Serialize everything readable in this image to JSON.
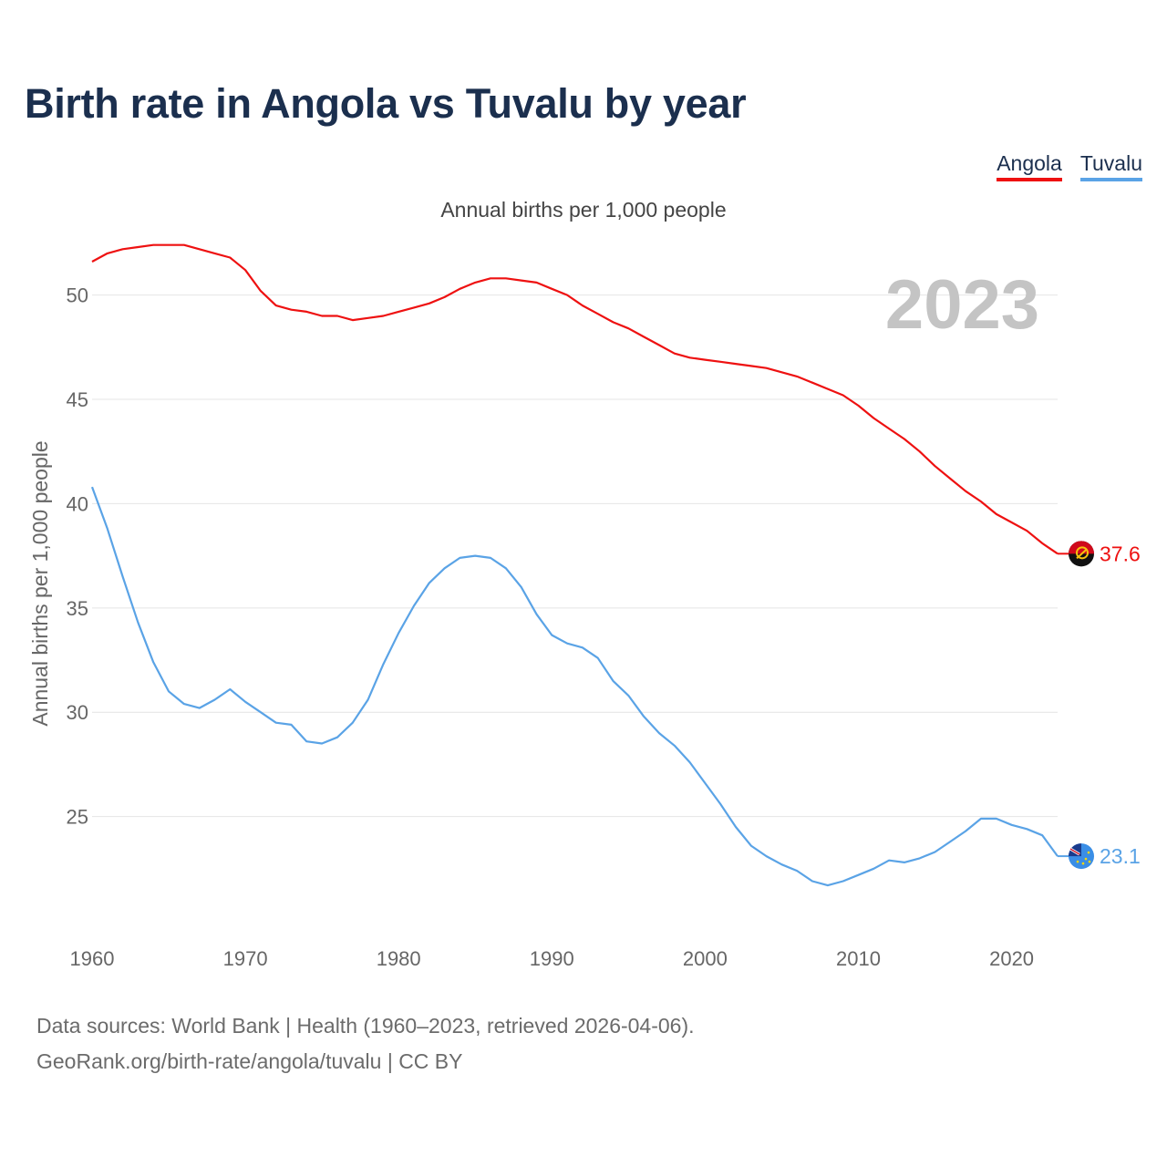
{
  "title": "Birth rate in Angola vs Tuvalu by year",
  "legend": [
    {
      "label": "Angola",
      "color": "#ee1111"
    },
    {
      "label": "Tuvalu",
      "color": "#5aa3e6"
    }
  ],
  "subtitle": "Annual births per 1,000 people",
  "year_watermark": "2023",
  "source_line1": "Data sources: World Bank | Health (1960–2023, retrieved 2026-04-06).",
  "source_line2": "GeoRank.org/birth-rate/angola/tuvalu | CC BY",
  "chart_data": {
    "type": "line",
    "title": "Birth rate in Angola vs Tuvalu by year",
    "xlabel": "",
    "ylabel": "Annual births per 1,000 people",
    "xlim": [
      1960,
      2023
    ],
    "ylim": [
      20,
      53
    ],
    "x_ticks": [
      1960,
      1970,
      1980,
      1990,
      2000,
      2010,
      2020
    ],
    "y_ticks": [
      25,
      30,
      35,
      40,
      45,
      50
    ],
    "grid": true,
    "legend_position": "top-right",
    "x": [
      1960,
      1961,
      1962,
      1963,
      1964,
      1965,
      1966,
      1967,
      1968,
      1969,
      1970,
      1971,
      1972,
      1973,
      1974,
      1975,
      1976,
      1977,
      1978,
      1979,
      1980,
      1981,
      1982,
      1983,
      1984,
      1985,
      1986,
      1987,
      1988,
      1989,
      1990,
      1991,
      1992,
      1993,
      1994,
      1995,
      1996,
      1997,
      1998,
      1999,
      2000,
      2001,
      2002,
      2003,
      2004,
      2005,
      2006,
      2007,
      2008,
      2009,
      2010,
      2011,
      2012,
      2013,
      2014,
      2015,
      2016,
      2017,
      2018,
      2019,
      2020,
      2021,
      2022,
      2023
    ],
    "series": [
      {
        "name": "Angola",
        "color": "#ee1111",
        "end_label": "37.6",
        "values": [
          51.6,
          52.0,
          52.2,
          52.3,
          52.4,
          52.4,
          52.4,
          52.2,
          52.0,
          51.8,
          51.2,
          50.2,
          49.5,
          49.3,
          49.2,
          49.0,
          49.0,
          48.8,
          48.9,
          49.0,
          49.2,
          49.4,
          49.6,
          49.9,
          50.3,
          50.6,
          50.8,
          50.8,
          50.7,
          50.6,
          50.3,
          50.0,
          49.5,
          49.1,
          48.7,
          48.4,
          48.0,
          47.6,
          47.2,
          47.0,
          46.9,
          46.8,
          46.7,
          46.6,
          46.5,
          46.3,
          46.1,
          45.8,
          45.5,
          45.2,
          44.7,
          44.1,
          43.6,
          43.1,
          42.5,
          41.8,
          41.2,
          40.6,
          40.1,
          39.5,
          39.1,
          38.7,
          38.1,
          37.6
        ]
      },
      {
        "name": "Tuvalu",
        "color": "#5aa3e6",
        "end_label": "23.1",
        "values": [
          40.8,
          38.8,
          36.5,
          34.3,
          32.4,
          31.0,
          30.4,
          30.2,
          30.6,
          31.1,
          30.5,
          30.0,
          29.5,
          29.4,
          28.6,
          28.5,
          28.8,
          29.5,
          30.6,
          32.3,
          33.8,
          35.1,
          36.2,
          36.9,
          37.4,
          37.5,
          37.4,
          36.9,
          36.0,
          34.7,
          33.7,
          33.3,
          33.1,
          32.6,
          31.5,
          30.8,
          29.8,
          29.0,
          28.4,
          27.6,
          26.6,
          25.6,
          24.5,
          23.6,
          23.1,
          22.7,
          22.4,
          21.9,
          21.7,
          21.9,
          22.2,
          22.5,
          22.9,
          22.8,
          23.0,
          23.3,
          23.8,
          24.3,
          24.9,
          24.9,
          24.6,
          24.4,
          24.1,
          23.1
        ]
      }
    ]
  }
}
